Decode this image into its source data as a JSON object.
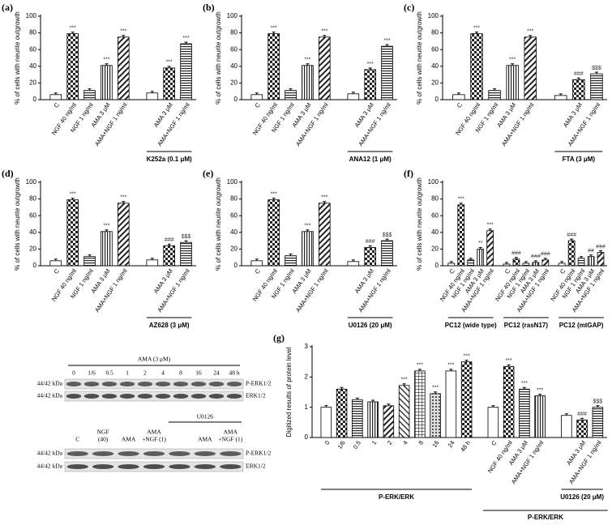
{
  "chart_data": [
    {
      "type": "bar",
      "panel": "(a)",
      "ylabel": "% of cells with neurite outgrowth",
      "ylim": [
        0,
        100
      ],
      "yticks": [
        0,
        20,
        40,
        60,
        80,
        100
      ],
      "groups": [
        {
          "categories": [
            "C",
            "NGF 40 ng/ml",
            "NGF 1 ng/ml",
            "AMA 3 μM",
            "AMA+NGF 1 ng/ml"
          ],
          "values": [
            6,
            79,
            11,
            41,
            75
          ],
          "annotations": [
            null,
            "***",
            null,
            "***",
            "***"
          ]
        },
        {
          "name": "K252a (0.1 μM)",
          "categories": [
            null,
            "AMA 3 μM",
            "AMA+NGF 1 ng/ml"
          ],
          "values": [
            8,
            38,
            67
          ],
          "annotations": [
            null,
            "***",
            "***"
          ]
        }
      ]
    },
    {
      "type": "bar",
      "panel": "(b)",
      "ylabel": "% of cells with neurite outgrowth",
      "ylim": [
        0,
        100
      ],
      "yticks": [
        0,
        20,
        40,
        60,
        80,
        100
      ],
      "groups": [
        {
          "categories": [
            "C",
            "NGF 40 ng/ml",
            "NGF 1 ng/ml",
            "AMA 3 μM",
            "AMA+NGF 1 ng/ml"
          ],
          "values": [
            6,
            79,
            11,
            41,
            75
          ],
          "annotations": [
            null,
            "***",
            null,
            "***",
            "***"
          ]
        },
        {
          "name": "ANA12 (1 μM)",
          "categories": [
            null,
            "AMA 3 μM",
            "AMA+NGF 1 ng/ml"
          ],
          "values": [
            7,
            36,
            64
          ],
          "annotations": [
            null,
            "***",
            "***"
          ]
        }
      ]
    },
    {
      "type": "bar",
      "panel": "(c)",
      "ylabel": "% of cells with neurite outgrowth",
      "ylim": [
        0,
        100
      ],
      "yticks": [
        0,
        20,
        40,
        60,
        80,
        100
      ],
      "groups": [
        {
          "categories": [
            "C",
            "NGF 40 ng/ml",
            "NGF 1 ng/ml",
            "AMA 3 μM",
            "AMA+NGF 1 ng/ml"
          ],
          "values": [
            6,
            79,
            11,
            41,
            75
          ],
          "annotations": [
            null,
            "***",
            null,
            "***",
            "***"
          ]
        },
        {
          "name": "FTA (3 μM)",
          "categories": [
            null,
            "AMA 3 μM",
            "AMA+NGF 1 ng/ml"
          ],
          "values": [
            5,
            24,
            31
          ],
          "annotations": [
            null,
            "###",
            "$$$"
          ]
        }
      ]
    },
    {
      "type": "bar",
      "panel": "(d)",
      "ylabel": "% of cells with neurite outgrowth",
      "ylim": [
        0,
        100
      ],
      "yticks": [
        0,
        20,
        40,
        60,
        80,
        100
      ],
      "groups": [
        {
          "categories": [
            "C",
            "NGF 40 ng/ml",
            "NGF 1 ng/ml",
            "AMA 3 μM",
            "AMA+NGF 1 ng/ml"
          ],
          "values": [
            6,
            79,
            11,
            41,
            75
          ],
          "annotations": [
            null,
            "***",
            null,
            "***",
            "***"
          ]
        },
        {
          "name": "AZ628 (3 μM)",
          "categories": [
            null,
            "AMA 3 μM",
            "AMA+NGF 1 ng/ml"
          ],
          "values": [
            7,
            24,
            28
          ],
          "annotations": [
            null,
            "###",
            "$$$"
          ]
        }
      ]
    },
    {
      "type": "bar",
      "panel": "(e)",
      "ylabel": "% of cells with neurite outgrowth",
      "ylim": [
        0,
        100
      ],
      "yticks": [
        0,
        20,
        40,
        60,
        80,
        100
      ],
      "groups": [
        {
          "categories": [
            "C",
            "NGF 40 ng/ml",
            "NGF 1 ng/ml",
            "AMA 3 μM",
            "AMA+NGF 1 ng/ml"
          ],
          "values": [
            6,
            79,
            12,
            41,
            75
          ],
          "annotations": [
            null,
            "***",
            null,
            "***",
            "***"
          ]
        },
        {
          "name": "U0126 (20 μM)",
          "categories": [
            null,
            "AMA 3 μM",
            "AMA+NGF 1 ng/ml"
          ],
          "values": [
            5,
            22,
            30
          ],
          "annotations": [
            null,
            "###",
            "$$$"
          ]
        }
      ]
    },
    {
      "type": "bar",
      "panel": "(f)",
      "ylabel": "% of cells with neurite outgrowth",
      "ylim": [
        0,
        100
      ],
      "yticks": [
        0,
        20,
        40,
        60,
        80,
        100
      ],
      "groups": [
        {
          "name": "PC12 (wide type)",
          "categories": [
            "C",
            "NGF 40 ng/ml",
            "NGF 1 ng/ml",
            "AMA 3 μM",
            "AMA+NGF 1 ng/ml"
          ],
          "values": [
            3,
            73,
            7,
            20,
            42
          ],
          "annotations": [
            null,
            "***",
            null,
            "**",
            "***"
          ]
        },
        {
          "name": "PC12 (rasN17)",
          "categories": [
            "C",
            "NGF 40 ng/ml",
            "NGF 1 ng/ml",
            "AMA 3 μM",
            "AMA+NGF 1 ng/ml"
          ],
          "values": [
            2,
            8,
            3,
            4,
            7
          ],
          "annotations": [
            null,
            "###",
            null,
            "###",
            "###"
          ]
        },
        {
          "name": "PC12 (mtGAP)",
          "categories": [
            "C",
            "NGF 40 ng/ml",
            "NGF 1 ng/ml",
            "AMA 3 μM",
            "AMA+NGF 1 ng/ml"
          ],
          "values": [
            3,
            30,
            9,
            11,
            16
          ],
          "annotations": [
            null,
            "###",
            null,
            "##",
            "###"
          ]
        }
      ]
    },
    {
      "type": "bar",
      "panel": "(g)",
      "ylabel": "Digitized results of protein level",
      "ylim": [
        0,
        3
      ],
      "yticks": [
        0,
        1,
        2,
        3
      ],
      "outer_label": "P-ERK/ERK",
      "groups": [
        {
          "name": "P-ERK/ERK",
          "categories": [
            "0",
            "1/6",
            "0.5",
            "1",
            "2",
            "4",
            "8",
            "16",
            "24",
            "48 h"
          ],
          "values": [
            1,
            1.6,
            1.25,
            1.18,
            1.05,
            1.72,
            2.2,
            1.45,
            2.2,
            2.5
          ],
          "annotations": [
            null,
            null,
            null,
            null,
            null,
            "***",
            "***",
            "***",
            "***",
            "***"
          ]
        },
        {
          "categories": [
            "C",
            "NGF 40 ng/ml",
            "AMA 3 μM",
            "AMA+NGF 1 ng/ml"
          ],
          "values": [
            1,
            2.35,
            1.6,
            1.38
          ],
          "annotations": [
            null,
            "***",
            "***",
            "***"
          ]
        },
        {
          "name": "U0126 (20 μM)",
          "categories": [
            null,
            "AMA 3 μM",
            "AMA+NGF 1 ng/ml"
          ],
          "values": [
            0.73,
            0.58,
            1
          ],
          "annotations": [
            null,
            "###",
            "$$$"
          ]
        }
      ]
    }
  ],
  "blots": {
    "upper": {
      "header": "AMA (3 μM)",
      "lanes": [
        "0",
        "1/6",
        "0.5",
        "1",
        "2",
        "4",
        "8",
        "16",
        "24",
        "48 h"
      ],
      "rows": [
        "P-ERK1/2",
        "ERK1/2"
      ],
      "kda": "44/42 kDa"
    },
    "lower": {
      "lanes": [
        [
          "C"
        ],
        [
          "NGF",
          "(40)"
        ],
        [
          "AMA"
        ],
        [
          "AMA",
          "+NGF (1)"
        ]
      ],
      "header_group": {
        "header": "U0126",
        "lanes": [
          null,
          [
            "AMA"
          ],
          [
            "AMA",
            "+NGF (1)"
          ]
        ]
      },
      "rows": [
        "P-ERK1/2",
        "ERK1/2"
      ],
      "kda": "44/42 kDa"
    }
  }
}
